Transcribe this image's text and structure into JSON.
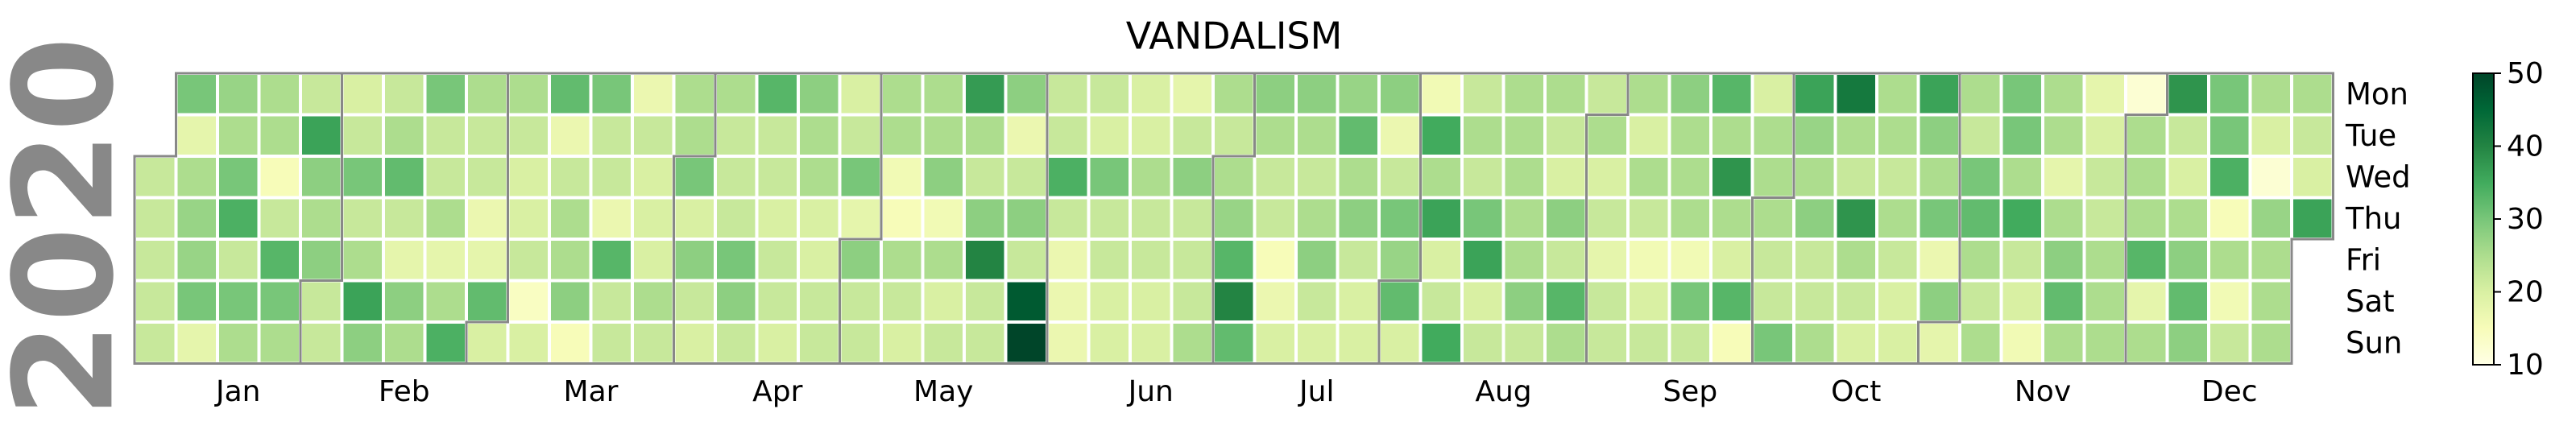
{
  "chart_data": {
    "type": "calendar_heatmap",
    "title": "VANDALISM",
    "year": "2020",
    "weekdays": [
      "Mon",
      "Tue",
      "Wed",
      "Thu",
      "Fri",
      "Sat",
      "Sun"
    ],
    "months": [
      "Jan",
      "Feb",
      "Mar",
      "Apr",
      "May",
      "Jun",
      "Jul",
      "Aug",
      "Sep",
      "Oct",
      "Nov",
      "Dec"
    ],
    "clim": [
      10,
      50
    ],
    "cticks": [
      10,
      20,
      30,
      40,
      50
    ],
    "colorscale": [
      "#ffffe5",
      "#f7fcb9",
      "#d9f0a3",
      "#addd8e",
      "#78c679",
      "#41ab5d",
      "#238443",
      "#006837",
      "#004529"
    ],
    "values": [
      22,
      22,
      22,
      22,
      22,
      30,
      18,
      25,
      27,
      27,
      30,
      18,
      27,
      25,
      30,
      34,
      22,
      30,
      25,
      25,
      25,
      15,
      22,
      33,
      30,
      25,
      22,
      36,
      28,
      25,
      28,
      22,
      22,
      20,
      22,
      30,
      22,
      25,
      36,
      28,
      22,
      25,
      32,
      22,
      18,
      28,
      25,
      30,
      22,
      22,
      25,
      18,
      25,
      34,
      25,
      22,
      22,
      17,
      18,
      32,
      20,
      25,
      22,
      20,
      20,
      22,
      14,
      20,
      32,
      17,
      22,
      25,
      25,
      28,
      15,
      30,
      22,
      22,
      17,
      33,
      22,
      22,
      17,
      22,
      20,
      20,
      20,
      25,
      22,
      25,
      25,
      30,
      20,
      28,
      22,
      20,
      25,
      22,
      22,
      22,
      30,
      28,
      22,
      33,
      22,
      22,
      20,
      22,
      22,
      20,
      28,
      25,
      25,
      20,
      20,
      22,
      22,
      20,
      22,
      30,
      18,
      28,
      22,
      22,
      25,
      25,
      16,
      15,
      25,
      22,
      20,
      25,
      25,
      28,
      16,
      25,
      20,
      22,
      37,
      25,
      22,
      28,
      40,
      22,
      22,
      28,
      17,
      22,
      28,
      22,
      47,
      50,
      22,
      22,
      34,
      22,
      17,
      17,
      17,
      22,
      20,
      30,
      22,
      22,
      20,
      20,
      20,
      20,
      25,
      22,
      22,
      20,
      20,
      18,
      22,
      28,
      22,
      22,
      22,
      25,
      25,
      22,
      25,
      27,
      33,
      40,
      32,
      28,
      25,
      22,
      22,
      15,
      17,
      20,
      28,
      25,
      22,
      25,
      28,
      22,
      20,
      27,
      32,
      25,
      28,
      22,
      20,
      20,
      28,
      17,
      22,
      30,
      27,
      32,
      20,
      16,
      35,
      25,
      36,
      20,
      22,
      35,
      22,
      25,
      22,
      30,
      36,
      20,
      22,
      25,
      25,
      25,
      25,
      25,
      28,
      22,
      25,
      22,
      20,
      28,
      22,
      33,
      25,
      22,
      25,
      20,
      22,
      18,
      22,
      22,
      25,
      20,
      25,
      22,
      16,
      20,
      22,
      28,
      25,
      25,
      25,
      16,
      30,
      22,
      33,
      25,
      38,
      25,
      20,
      33,
      15,
      20,
      25,
      25,
      25,
      22,
      22,
      30,
      36,
      27,
      25,
      28,
      22,
      22,
      25,
      42,
      25,
      22,
      38,
      25,
      22,
      20,
      25,
      25,
      22,
      25,
      22,
      20,
      20,
      36,
      28,
      25,
      30,
      17,
      28,
      18,
      25,
      22,
      30,
      32,
      25,
      22,
      25,
      30,
      30,
      25,
      35,
      22,
      20,
      16,
      25,
      25,
      18,
      25,
      28,
      32,
      25,
      18,
      20,
      22,
      22,
      25,
      25,
      25,
      12,
      25,
      25,
      25,
      33,
      18,
      25,
      38,
      22,
      20,
      25,
      28,
      32,
      28,
      30,
      30,
      34,
      15,
      25,
      16,
      22,
      25,
      20,
      12,
      27,
      25,
      25,
      25,
      25,
      22,
      20,
      36
    ]
  }
}
